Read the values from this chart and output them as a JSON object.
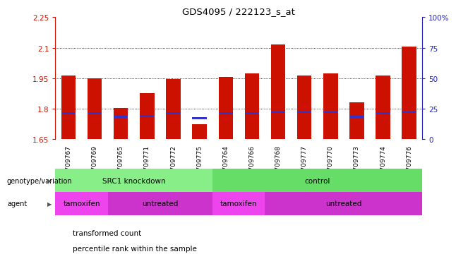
{
  "title": "GDS4095 / 222123_s_at",
  "samples": [
    "GSM709767",
    "GSM709769",
    "GSM709765",
    "GSM709771",
    "GSM709772",
    "GSM709775",
    "GSM709764",
    "GSM709766",
    "GSM709768",
    "GSM709777",
    "GSM709770",
    "GSM709773",
    "GSM709774",
    "GSM709776"
  ],
  "transformed_counts": [
    1.965,
    1.95,
    1.805,
    1.875,
    1.945,
    1.725,
    1.955,
    1.975,
    2.115,
    1.965,
    1.975,
    1.83,
    1.965,
    2.105
  ],
  "ymin": 1.65,
  "ymax": 2.25,
  "yticks": [
    1.65,
    1.8,
    1.95,
    2.1,
    2.25
  ],
  "ytick_labels": [
    "1.65",
    "1.8",
    "1.95",
    "2.1",
    "2.25"
  ],
  "right_yticks": [
    0,
    25,
    50,
    75,
    100
  ],
  "right_ytick_labels": [
    "0",
    "25",
    "50",
    "75",
    "100%"
  ],
  "grid_lines": [
    1.8,
    1.95,
    2.1
  ],
  "bar_color": "#cc1100",
  "percentile_color": "#3333cc",
  "bg_color": "#ffffff",
  "genotype_variation": [
    {
      "label": "SRC1 knockdown",
      "start": 0,
      "end": 6,
      "color": "#88ee88"
    },
    {
      "label": "control",
      "start": 6,
      "end": 14,
      "color": "#66dd66"
    }
  ],
  "agent": [
    {
      "label": "tamoxifen",
      "start": 0,
      "end": 2,
      "color": "#ee44ee"
    },
    {
      "label": "untreated",
      "start": 2,
      "end": 6,
      "color": "#cc33cc"
    },
    {
      "label": "tamoxifen",
      "start": 6,
      "end": 8,
      "color": "#ee44ee"
    },
    {
      "label": "untreated",
      "start": 8,
      "end": 14,
      "color": "#cc33cc"
    }
  ],
  "legend_items": [
    {
      "label": "transformed count",
      "color": "#cc1100"
    },
    {
      "label": "percentile rank within the sample",
      "color": "#3333cc"
    }
  ],
  "left_label_color": "#cc1100",
  "right_label_color": "#2222bb",
  "genotype_row_label": "genotype/variation",
  "agent_row_label": "agent",
  "bar_width": 0.55,
  "percentile_values": [
    21,
    21,
    18,
    19,
    21,
    17,
    21,
    21,
    22,
    22,
    22,
    18,
    21,
    22
  ]
}
